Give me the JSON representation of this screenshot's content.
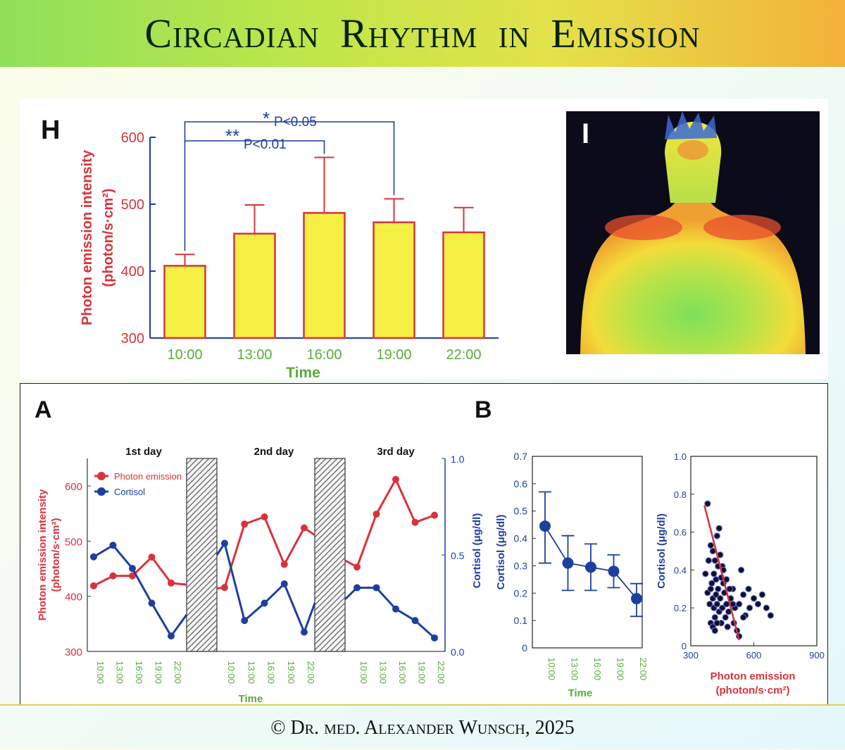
{
  "title": "Circadian Rhythm in Emission",
  "footer": "© Dr. med. Alexander Wunsch, 2025",
  "colors": {
    "red": "#d8333b",
    "blue": "#1d3fa0",
    "green": "#5aab3c",
    "bar_fill": "#f3ef43"
  },
  "chart_data": [
    {
      "id": "H",
      "panel_label": "H",
      "type": "bar",
      "categories": [
        "10:00",
        "13:00",
        "16:00",
        "19:00",
        "22:00"
      ],
      "values": [
        408,
        456,
        487,
        473,
        458
      ],
      "error_upper": [
        425,
        499,
        570,
        508,
        495
      ],
      "ylim": [
        300,
        600
      ],
      "yticks": [
        "300",
        "400",
        "500",
        "600"
      ],
      "ylabel_line1": "Photon emission intensity",
      "ylabel_line2": "(photon/s·cm²)",
      "xlabel": "Time",
      "annotations": [
        {
          "stars": "*",
          "text": "P<0.05"
        },
        {
          "stars": "**",
          "text": "P<0.01"
        }
      ]
    },
    {
      "id": "A",
      "panel_label": "A",
      "type": "line",
      "day_labels": [
        "1st day",
        "2nd day",
        "3rd day"
      ],
      "xticks": [
        "10:00",
        "13:00",
        "16:00",
        "19:00",
        "22:00",
        "10:00",
        "13:00",
        "16:00",
        "19:00",
        "22:00",
        "10:00",
        "13:00",
        "16:00",
        "19:00",
        "22:00"
      ],
      "xlabel": "Time",
      "ylabel_left_line1": "Photon emission intensity",
      "ylabel_left_line2": "(photon/s·cm²)",
      "ylabel_right": "Cortisol (μg/dl)",
      "ylim_left": [
        300,
        650
      ],
      "yticks_left": [
        "300",
        "400",
        "500",
        "600"
      ],
      "ylim_right": [
        0,
        1.0
      ],
      "yticks_right": [
        "0.0",
        "0.5",
        "1.0"
      ],
      "series": [
        {
          "name": "Photon emission",
          "axis": "left",
          "days": [
            [
              419,
              437,
              437,
              471,
              424
            ],
            [
              416,
              531,
              544,
              458,
              524
            ],
            [
              453,
              549,
              612,
              534,
              547
            ]
          ],
          "stubs_out": [
            421,
            511
          ],
          "stubs_in": [
            414,
            465
          ]
        },
        {
          "name": "Cortisol",
          "axis": "right",
          "days": [
            [
              0.49,
              0.55,
              0.43,
              0.25,
              0.08
            ],
            [
              0.56,
              0.16,
              0.25,
              0.35,
              0.1
            ],
            [
              0.33,
              0.33,
              0.22,
              0.16,
              0.07
            ]
          ],
          "stubs_out": [
            0.19,
            0.25
          ],
          "stubs_in": [
            0.5,
            0.27
          ]
        }
      ]
    },
    {
      "id": "B1",
      "panel_label": "B",
      "type": "line",
      "categories": [
        "10:00",
        "13:00",
        "16:00",
        "19:00",
        "22:00"
      ],
      "values": [
        0.445,
        0.31,
        0.295,
        0.28,
        0.18
      ],
      "error_low": [
        0.31,
        0.21,
        0.21,
        0.22,
        0.115
      ],
      "error_high": [
        0.57,
        0.41,
        0.38,
        0.34,
        0.235
      ],
      "ylim": [
        0,
        0.7
      ],
      "yticks": [
        "0",
        "0.1",
        "0.2",
        "0.3",
        "0.4",
        "0.5",
        "0.6",
        "0.7"
      ],
      "ylabel": "Cortisol (μg/dl)",
      "xlabel": "Time"
    },
    {
      "id": "B2",
      "type": "scatter",
      "xlim": [
        300,
        900
      ],
      "ylim": [
        0,
        1.0
      ],
      "xticks": [
        "300",
        "600",
        "900"
      ],
      "yticks": [
        "0",
        "0.2",
        "0.4",
        "0.6",
        "0.8",
        "1.0"
      ],
      "xlabel_line1": "Photon emission",
      "xlabel_line2": "(photon/s·cm²)",
      "ylabel": "Cortisol (μg/dl)",
      "fit_line": {
        "x": [
          365,
          530
        ],
        "y": [
          0.74,
          0.03
        ]
      },
      "points": [
        [
          380,
          0.75
        ],
        [
          395,
          0.53
        ],
        [
          405,
          0.5
        ],
        [
          415,
          0.45
        ],
        [
          425,
          0.58
        ],
        [
          435,
          0.62
        ],
        [
          410,
          0.38
        ],
        [
          420,
          0.35
        ],
        [
          440,
          0.48
        ],
        [
          450,
          0.42
        ],
        [
          380,
          0.28
        ],
        [
          390,
          0.22
        ],
        [
          395,
          0.3
        ],
        [
          400,
          0.33
        ],
        [
          405,
          0.25
        ],
        [
          410,
          0.2
        ],
        [
          415,
          0.15
        ],
        [
          420,
          0.27
        ],
        [
          425,
          0.22
        ],
        [
          430,
          0.3
        ],
        [
          435,
          0.18
        ],
        [
          440,
          0.25
        ],
        [
          445,
          0.12
        ],
        [
          450,
          0.2
        ],
        [
          455,
          0.33
        ],
        [
          460,
          0.28
        ],
        [
          465,
          0.15
        ],
        [
          470,
          0.22
        ],
        [
          475,
          0.1
        ],
        [
          480,
          0.18
        ],
        [
          490,
          0.25
        ],
        [
          500,
          0.3
        ],
        [
          510,
          0.2
        ],
        [
          520,
          0.08
        ],
        [
          530,
          0.22
        ],
        [
          540,
          0.4
        ],
        [
          550,
          0.27
        ],
        [
          560,
          0.16
        ],
        [
          575,
          0.3
        ],
        [
          580,
          0.2
        ],
        [
          600,
          0.25
        ],
        [
          620,
          0.22
        ],
        [
          640,
          0.27
        ],
        [
          660,
          0.2
        ],
        [
          680,
          0.16
        ],
        [
          370,
          0.38
        ],
        [
          385,
          0.45
        ],
        [
          395,
          0.12
        ],
        [
          405,
          0.1
        ],
        [
          415,
          0.08
        ],
        [
          425,
          0.12
        ],
        [
          430,
          0.42
        ],
        [
          445,
          0.36
        ],
        [
          455,
          0.4
        ],
        [
          470,
          0.35
        ],
        [
          485,
          0.3
        ],
        [
          500,
          0.22
        ],
        [
          505,
          0.12
        ],
        [
          530,
          0.05
        ],
        [
          550,
          0.15
        ]
      ]
    }
  ],
  "thermal_image": {
    "panel_label": "I"
  }
}
